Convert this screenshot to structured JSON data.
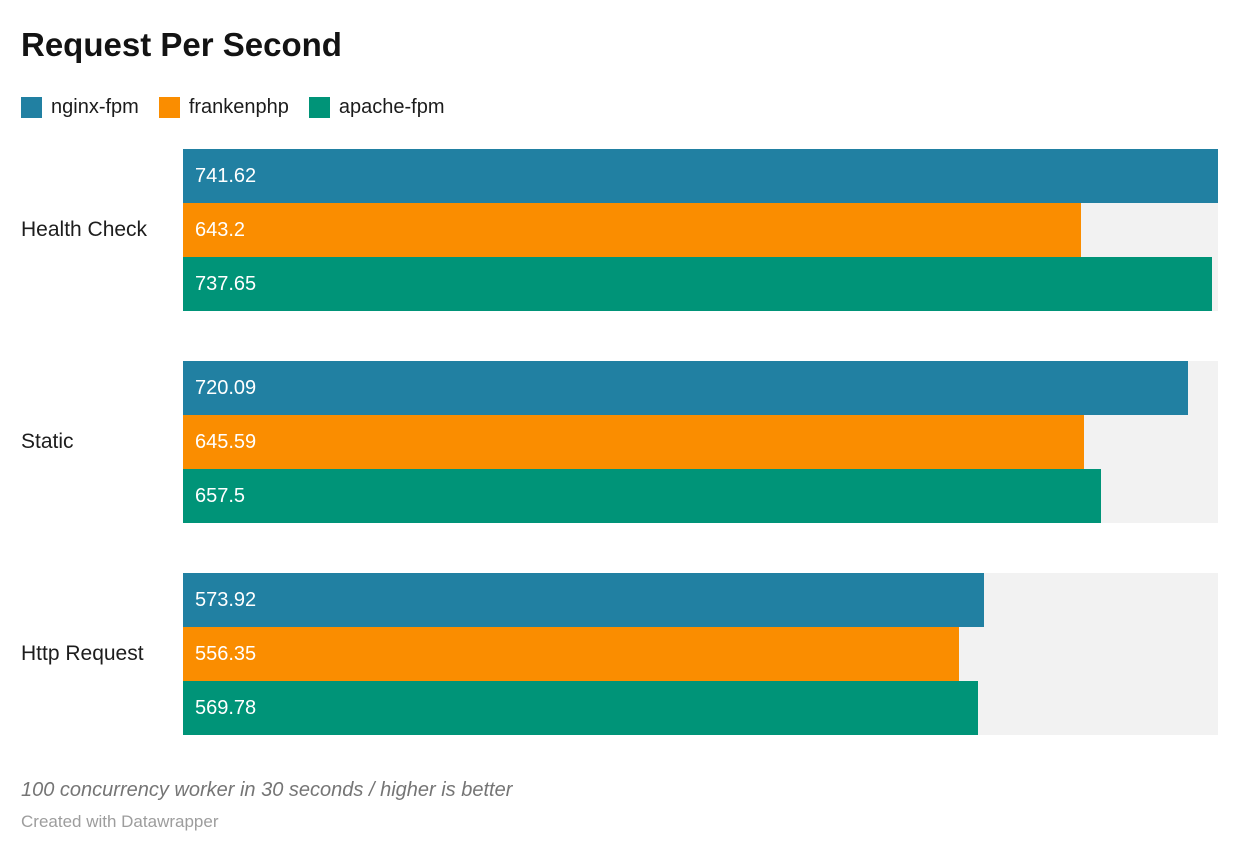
{
  "title": "Request Per Second",
  "legend": [
    {
      "label": "nginx-fpm",
      "color": "#2180a2"
    },
    {
      "label": "frankenphp",
      "color": "#fa8d00"
    },
    {
      "label": "apache-fpm",
      "color": "#009478"
    }
  ],
  "chart_data": {
    "type": "bar",
    "orientation": "horizontal",
    "title": "Request Per Second",
    "categories": [
      "Health Check",
      "Static",
      "Http Request"
    ],
    "series": [
      {
        "name": "nginx-fpm",
        "color": "#2180a2",
        "values": [
          741.62,
          720.09,
          573.92
        ]
      },
      {
        "name": "frankenphp",
        "color": "#fa8d00",
        "values": [
          643.2,
          645.59,
          556.35
        ]
      },
      {
        "name": "apache-fpm",
        "color": "#009478",
        "values": [
          737.65,
          657.5,
          569.78
        ]
      }
    ],
    "xlim": [
      0,
      741.62
    ],
    "value_labels": "inside-left",
    "value_label_color": "#ffffff",
    "track_color": "#f2f2f2",
    "grid": false,
    "legend_position": "top"
  },
  "footer": {
    "note": "100 concurrency worker in 30 seconds / higher is better",
    "credit": "Created with Datawrapper"
  }
}
